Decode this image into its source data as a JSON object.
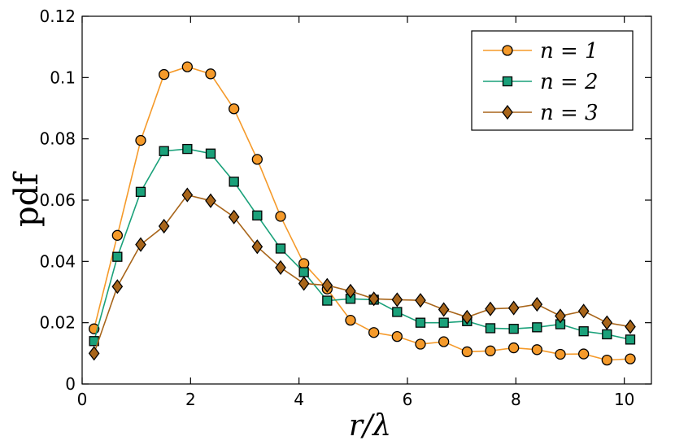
{
  "chart_data": {
    "type": "line",
    "xlabel": "r/λ",
    "ylabel": "pdf",
    "xlim": [
      0,
      10.5
    ],
    "ylim": [
      0,
      0.12
    ],
    "xticks": [
      "0",
      "2",
      "4",
      "6",
      "8",
      "10"
    ],
    "yticks": [
      "0",
      "0.02",
      "0.04",
      "0.06",
      "0.08",
      "0.1",
      "0.12"
    ],
    "grid": false,
    "legend_position": "top-right",
    "x": [
      0.22,
      0.65,
      1.08,
      1.51,
      1.94,
      2.37,
      2.8,
      3.23,
      3.66,
      4.09,
      4.52,
      4.95,
      5.38,
      5.81,
      6.24,
      6.67,
      7.1,
      7.53,
      7.96,
      8.39,
      8.82,
      9.25,
      9.68,
      10.11
    ],
    "series": [
      {
        "name": "n = 1",
        "color": "#f59a2a",
        "marker": "circle",
        "values": [
          0.018,
          0.0485,
          0.0795,
          0.101,
          0.1035,
          0.1012,
          0.0898,
          0.0733,
          0.0547,
          0.0393,
          0.031,
          0.0208,
          0.0168,
          0.0155,
          0.013,
          0.0138,
          0.0105,
          0.0108,
          0.0118,
          0.0112,
          0.0097,
          0.0098,
          0.0078,
          0.0082
        ]
      },
      {
        "name": "n = 2",
        "color": "#1aa17a",
        "marker": "square",
        "values": [
          0.014,
          0.0415,
          0.0627,
          0.076,
          0.0767,
          0.0752,
          0.066,
          0.055,
          0.0442,
          0.0365,
          0.0272,
          0.0278,
          0.0275,
          0.0235,
          0.02,
          0.02,
          0.0205,
          0.0182,
          0.018,
          0.0185,
          0.0195,
          0.0172,
          0.0162,
          0.0145
        ]
      },
      {
        "name": "n = 3",
        "color": "#a8651a",
        "marker": "diamond",
        "values": [
          0.01,
          0.0318,
          0.0455,
          0.0515,
          0.0617,
          0.0598,
          0.0545,
          0.0448,
          0.038,
          0.0328,
          0.0322,
          0.0303,
          0.0278,
          0.0275,
          0.0273,
          0.0243,
          0.0218,
          0.0245,
          0.0248,
          0.026,
          0.0222,
          0.0238,
          0.02,
          0.0187
        ]
      }
    ]
  }
}
